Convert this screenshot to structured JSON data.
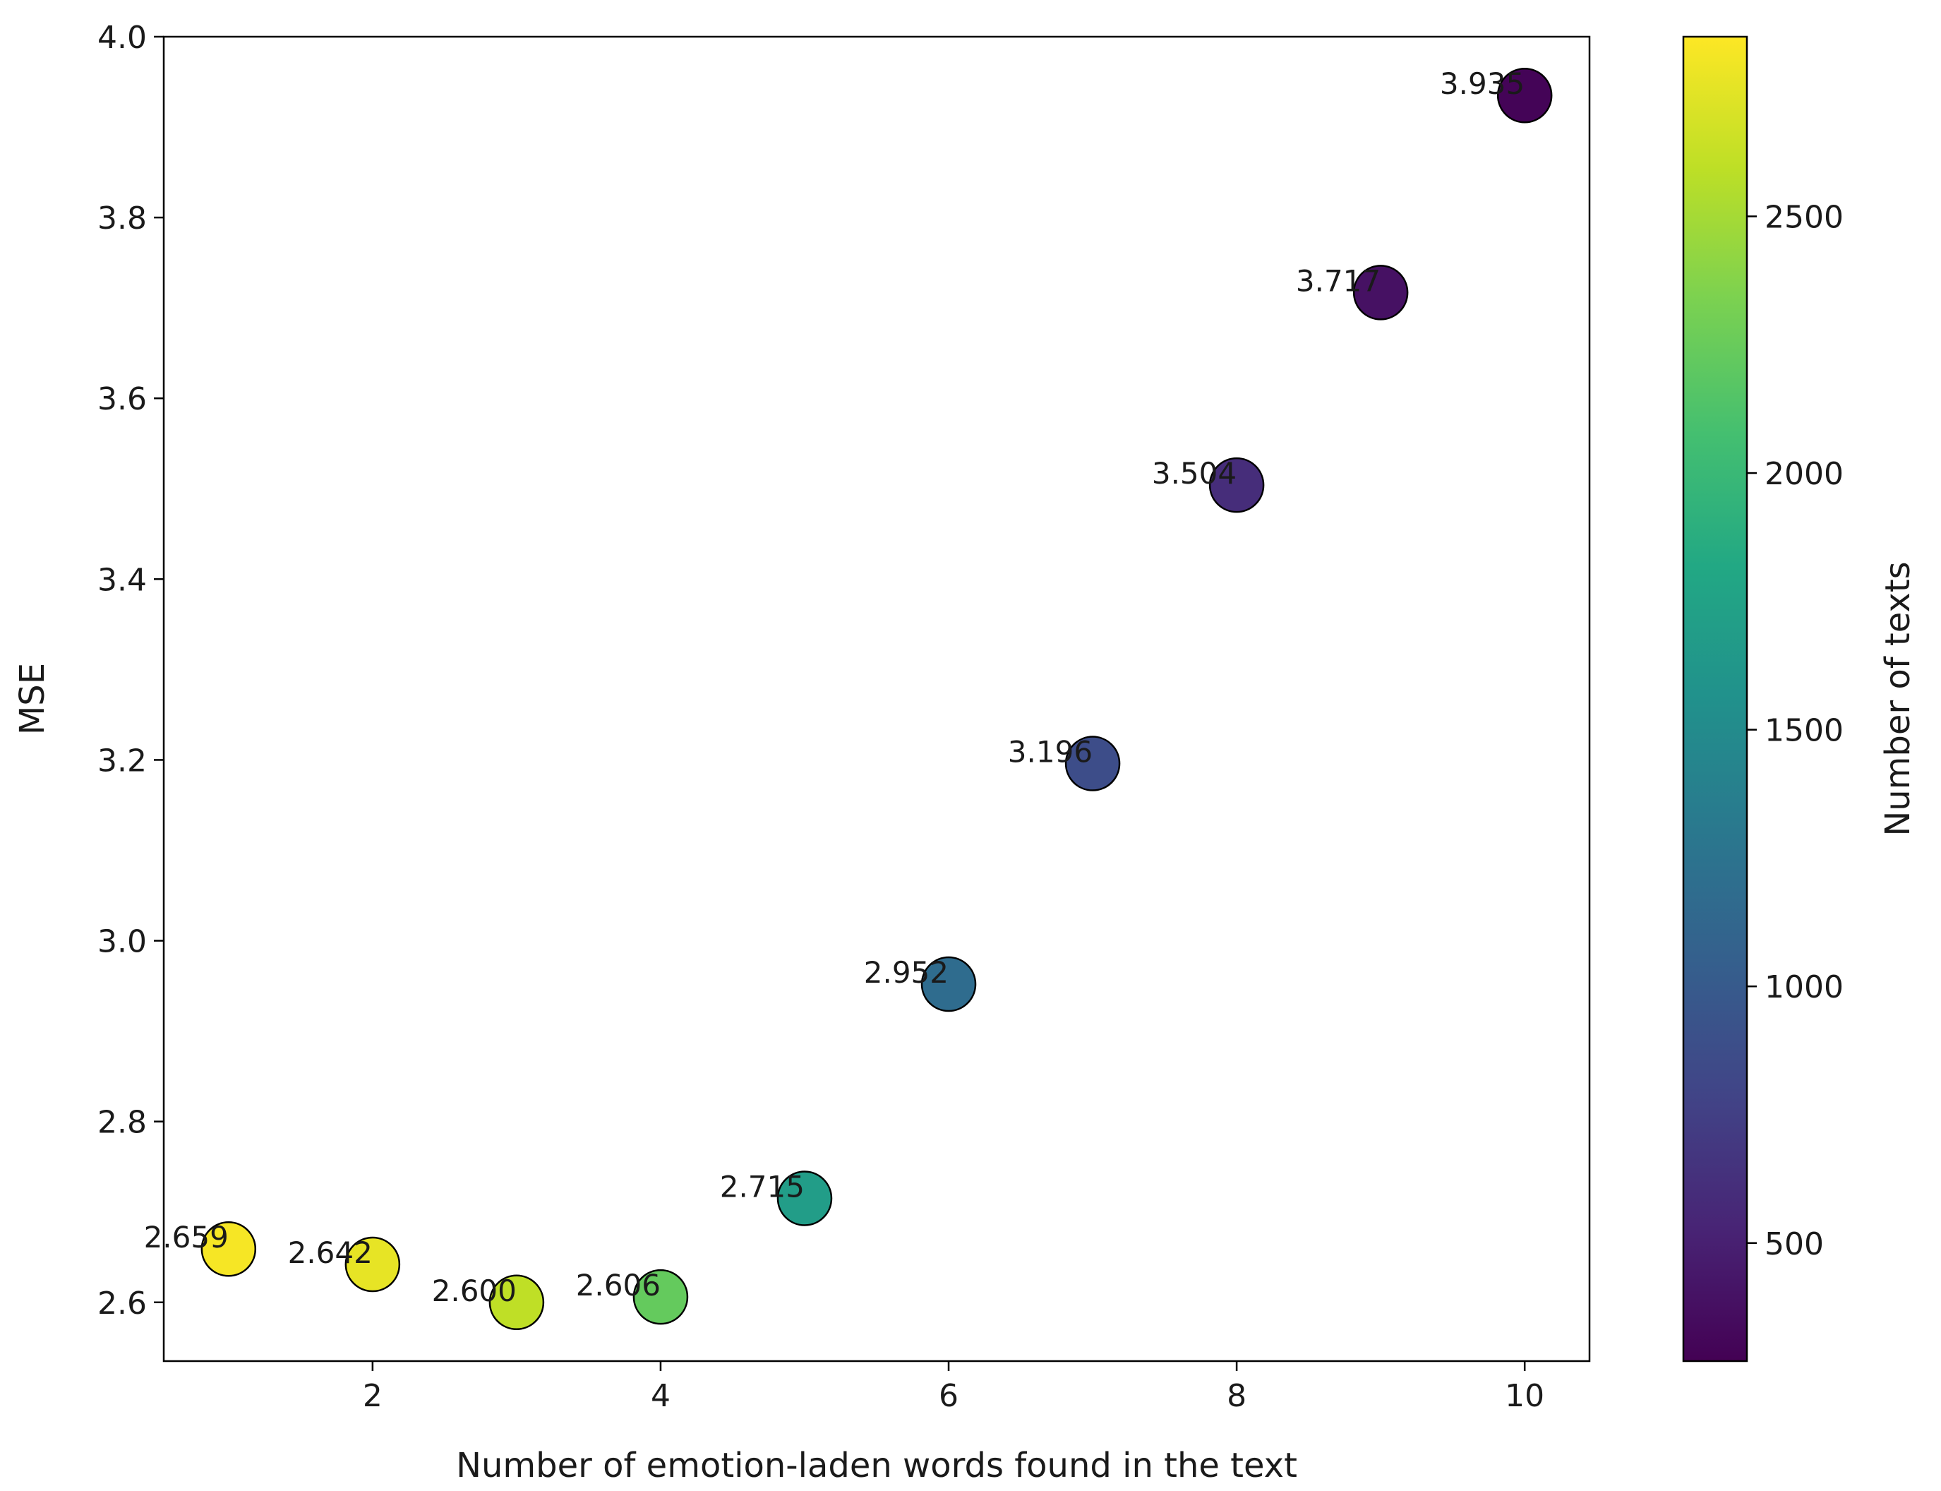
{
  "chart_data": {
    "type": "scatter",
    "title": "",
    "xlabel": "Number of emotion-laden words found in the text",
    "ylabel": "MSE",
    "xlim": [
      0.55,
      10.45
    ],
    "ylim": [
      2.535,
      4.0
    ],
    "x_ticks": [
      2,
      4,
      6,
      8,
      10
    ],
    "y_ticks": [
      2.6,
      2.8,
      3.0,
      3.2,
      3.4,
      3.6,
      3.8,
      4.0
    ],
    "x_tick_labels": [
      "2",
      "4",
      "6",
      "8",
      "10"
    ],
    "y_tick_labels": [
      "2.6",
      "2.8",
      "3.0",
      "3.2",
      "3.4",
      "3.6",
      "3.8",
      "4.0"
    ],
    "grid": false,
    "points": [
      {
        "x": 1,
        "y": 2.659,
        "count": 2820,
        "label": "2.659"
      },
      {
        "x": 2,
        "y": 2.642,
        "count": 2760,
        "label": "2.642"
      },
      {
        "x": 3,
        "y": 2.6,
        "count": 2600,
        "label": "2.600"
      },
      {
        "x": 4,
        "y": 2.606,
        "count": 2230,
        "label": "2.606"
      },
      {
        "x": 5,
        "y": 2.715,
        "count": 1700,
        "label": "2.715"
      },
      {
        "x": 6,
        "y": 2.952,
        "count": 1180,
        "label": "2.952"
      },
      {
        "x": 7,
        "y": 3.196,
        "count": 870,
        "label": "3.196"
      },
      {
        "x": 8,
        "y": 3.504,
        "count": 600,
        "label": "3.504"
      },
      {
        "x": 9,
        "y": 3.717,
        "count": 390,
        "label": "3.717"
      },
      {
        "x": 10,
        "y": 3.935,
        "count": 290,
        "label": "3.935"
      }
    ],
    "colorbar": {
      "label": "Number of texts",
      "colormap": "viridis",
      "range": [
        270,
        2850
      ],
      "ticks": [
        500,
        1000,
        1500,
        2000,
        2500
      ],
      "tick_labels": [
        "500",
        "1000",
        "1500",
        "2000",
        "2500"
      ]
    }
  }
}
